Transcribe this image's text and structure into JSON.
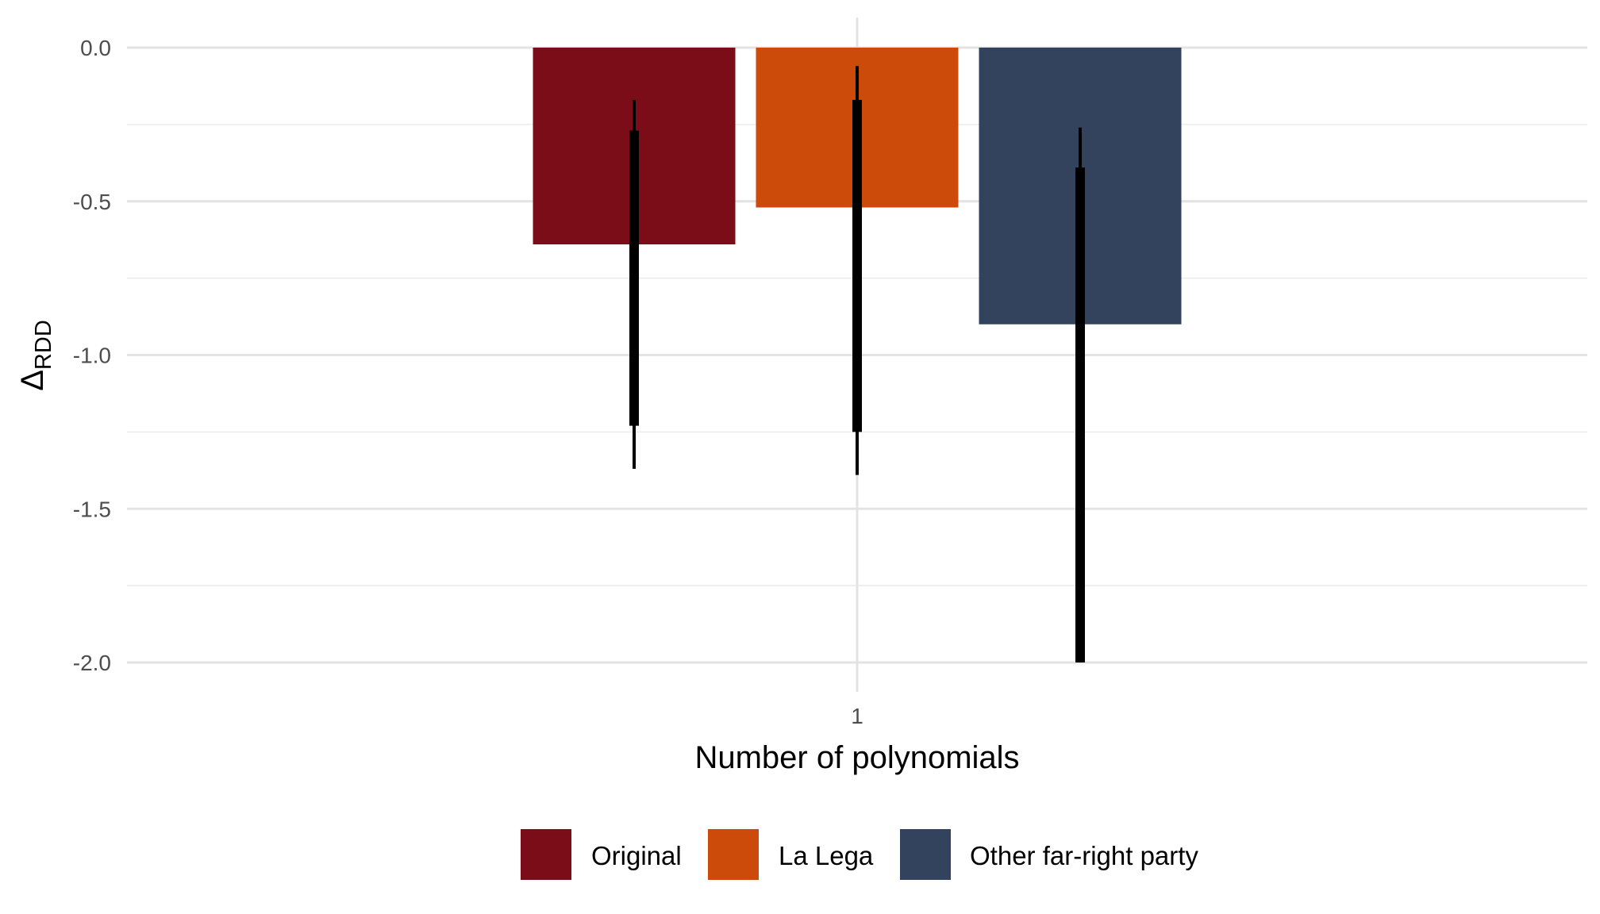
{
  "chart_data": {
    "type": "bar",
    "categories": [
      "1"
    ],
    "xlabel": "Number of polynomials",
    "ylabel": {
      "main": "Δ",
      "subscript": "RDD"
    },
    "ylim": [
      -2.05,
      0.1
    ],
    "yticks": [
      0.0,
      -0.5,
      -1.0,
      -1.5,
      -2.0
    ],
    "ytick_labels": [
      "0.0",
      "-0.5",
      "-1.0",
      "-1.5",
      "-2.0"
    ],
    "grid": true,
    "legend_position": "bottom",
    "series": [
      {
        "name": "Original",
        "color": "#7B0D18",
        "values": [
          -0.64
        ],
        "ci_inner": [
          -0.27,
          -1.23
        ],
        "ci_outer": [
          -0.17,
          -1.37
        ]
      },
      {
        "name": "La Lega",
        "color": "#CC4A0A",
        "values": [
          -0.52
        ],
        "ci_inner": [
          -0.17,
          -1.25
        ],
        "ci_outer": [
          -0.06,
          -1.39
        ]
      },
      {
        "name": "Other far-right party",
        "color": "#33435D",
        "values": [
          -0.9
        ],
        "ci_inner": [
          -0.39,
          -2.0
        ],
        "ci_outer": [
          -0.26,
          -2.0
        ]
      }
    ]
  }
}
